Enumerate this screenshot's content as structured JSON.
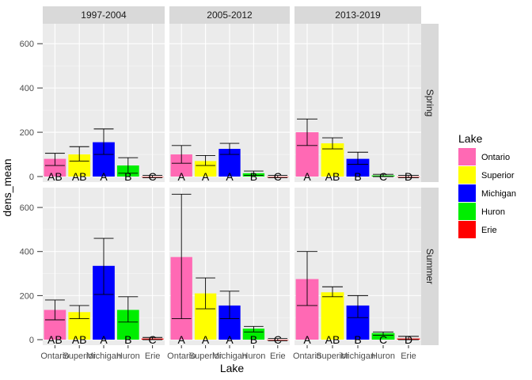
{
  "chart_data": {
    "type": "bar",
    "layout": "faceted grid (3 columns x 2 rows)",
    "xlabel": "Lake",
    "ylabel": "dens_mean",
    "ylim": [
      -25,
      690
    ],
    "yticks": [
      0,
      200,
      400,
      600
    ],
    "categories": [
      "Ontario",
      "Superior",
      "Michigan",
      "Huron",
      "Erie"
    ],
    "column_facets": [
      "1997-2004",
      "2005-2012",
      "2013-2019"
    ],
    "row_facets": [
      "Spring",
      "Summer"
    ],
    "legend": {
      "title": "Lake",
      "position": "right",
      "entries": [
        "Ontario",
        "Superior",
        "Michigan",
        "Huron",
        "Erie"
      ]
    },
    "colors": {
      "Ontario": "#FF69B4",
      "Superior": "#FFFF00",
      "Michigan": "#0000FF",
      "Huron": "#00EE00",
      "Erie": "#FF0000"
    },
    "grid": true,
    "panels": [
      {
        "row": "Spring",
        "col": "1997-2004",
        "values": [
          80,
          100,
          155,
          50,
          0
        ],
        "error_low": [
          50,
          70,
          100,
          15,
          -5
        ],
        "error_high": [
          105,
          135,
          215,
          85,
          5
        ],
        "letters": [
          "AB",
          "AB",
          "A",
          "B",
          "C"
        ]
      },
      {
        "row": "Spring",
        "col": "2005-2012",
        "values": [
          100,
          70,
          125,
          15,
          0
        ],
        "error_low": [
          60,
          50,
          100,
          5,
          -5
        ],
        "error_high": [
          140,
          95,
          150,
          25,
          5
        ],
        "letters": [
          "A",
          "A",
          "A",
          "B",
          "C"
        ]
      },
      {
        "row": "Spring",
        "col": "2013-2019",
        "values": [
          200,
          150,
          80,
          5,
          0
        ],
        "error_low": [
          140,
          125,
          55,
          0,
          -5
        ],
        "error_high": [
          260,
          175,
          110,
          10,
          5
        ],
        "letters": [
          "A",
          "AB",
          "B",
          "C",
          "D"
        ]
      },
      {
        "row": "Summer",
        "col": "1997-2004",
        "values": [
          135,
          125,
          335,
          135,
          5
        ],
        "error_low": [
          90,
          95,
          205,
          80,
          0
        ],
        "error_high": [
          180,
          155,
          460,
          195,
          10
        ],
        "letters": [
          "AB",
          "AB",
          "A",
          "B",
          "C"
        ]
      },
      {
        "row": "Summer",
        "col": "2005-2012",
        "values": [
          375,
          210,
          155,
          50,
          0
        ],
        "error_low": [
          95,
          140,
          95,
          35,
          -5
        ],
        "error_high": [
          660,
          280,
          220,
          60,
          5
        ],
        "letters": [
          "A",
          "A",
          "A",
          "B",
          "C"
        ]
      },
      {
        "row": "Summer",
        "col": "2013-2019",
        "values": [
          275,
          215,
          155,
          30,
          5
        ],
        "error_low": [
          155,
          195,
          100,
          20,
          0
        ],
        "error_high": [
          400,
          240,
          200,
          35,
          15
        ],
        "letters": [
          "A",
          "AB",
          "B",
          "C",
          "D"
        ]
      }
    ]
  }
}
